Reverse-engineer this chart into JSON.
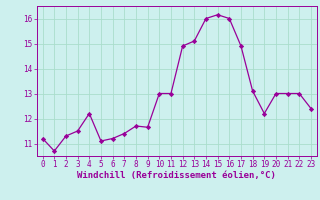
{
  "x": [
    0,
    1,
    2,
    3,
    4,
    5,
    6,
    7,
    8,
    9,
    10,
    11,
    12,
    13,
    14,
    15,
    16,
    17,
    18,
    19,
    20,
    21,
    22,
    23
  ],
  "y": [
    11.2,
    10.7,
    11.3,
    11.5,
    12.2,
    11.1,
    11.2,
    11.4,
    11.7,
    11.65,
    13.0,
    13.0,
    14.9,
    15.1,
    16.0,
    16.15,
    16.0,
    14.9,
    13.1,
    12.2,
    13.0,
    13.0,
    13.0,
    12.4
  ],
  "line_color": "#990099",
  "marker": "D",
  "marker_size": 2.2,
  "line_width": 0.9,
  "bg_color": "#cdf0ee",
  "grid_color": "#aaddcc",
  "xlabel": "Windchill (Refroidissement éolien,°C)",
  "xlabel_color": "#990099",
  "tick_color": "#990099",
  "ylim": [
    10.5,
    16.5
  ],
  "xlim": [
    -0.5,
    23.5
  ],
  "xticks": [
    0,
    1,
    2,
    3,
    4,
    5,
    6,
    7,
    8,
    9,
    10,
    11,
    12,
    13,
    14,
    15,
    16,
    17,
    18,
    19,
    20,
    21,
    22,
    23
  ],
  "yticks": [
    11,
    12,
    13,
    14,
    15,
    16
  ],
  "tick_fontsize": 5.5,
  "xlabel_fontsize": 6.5
}
